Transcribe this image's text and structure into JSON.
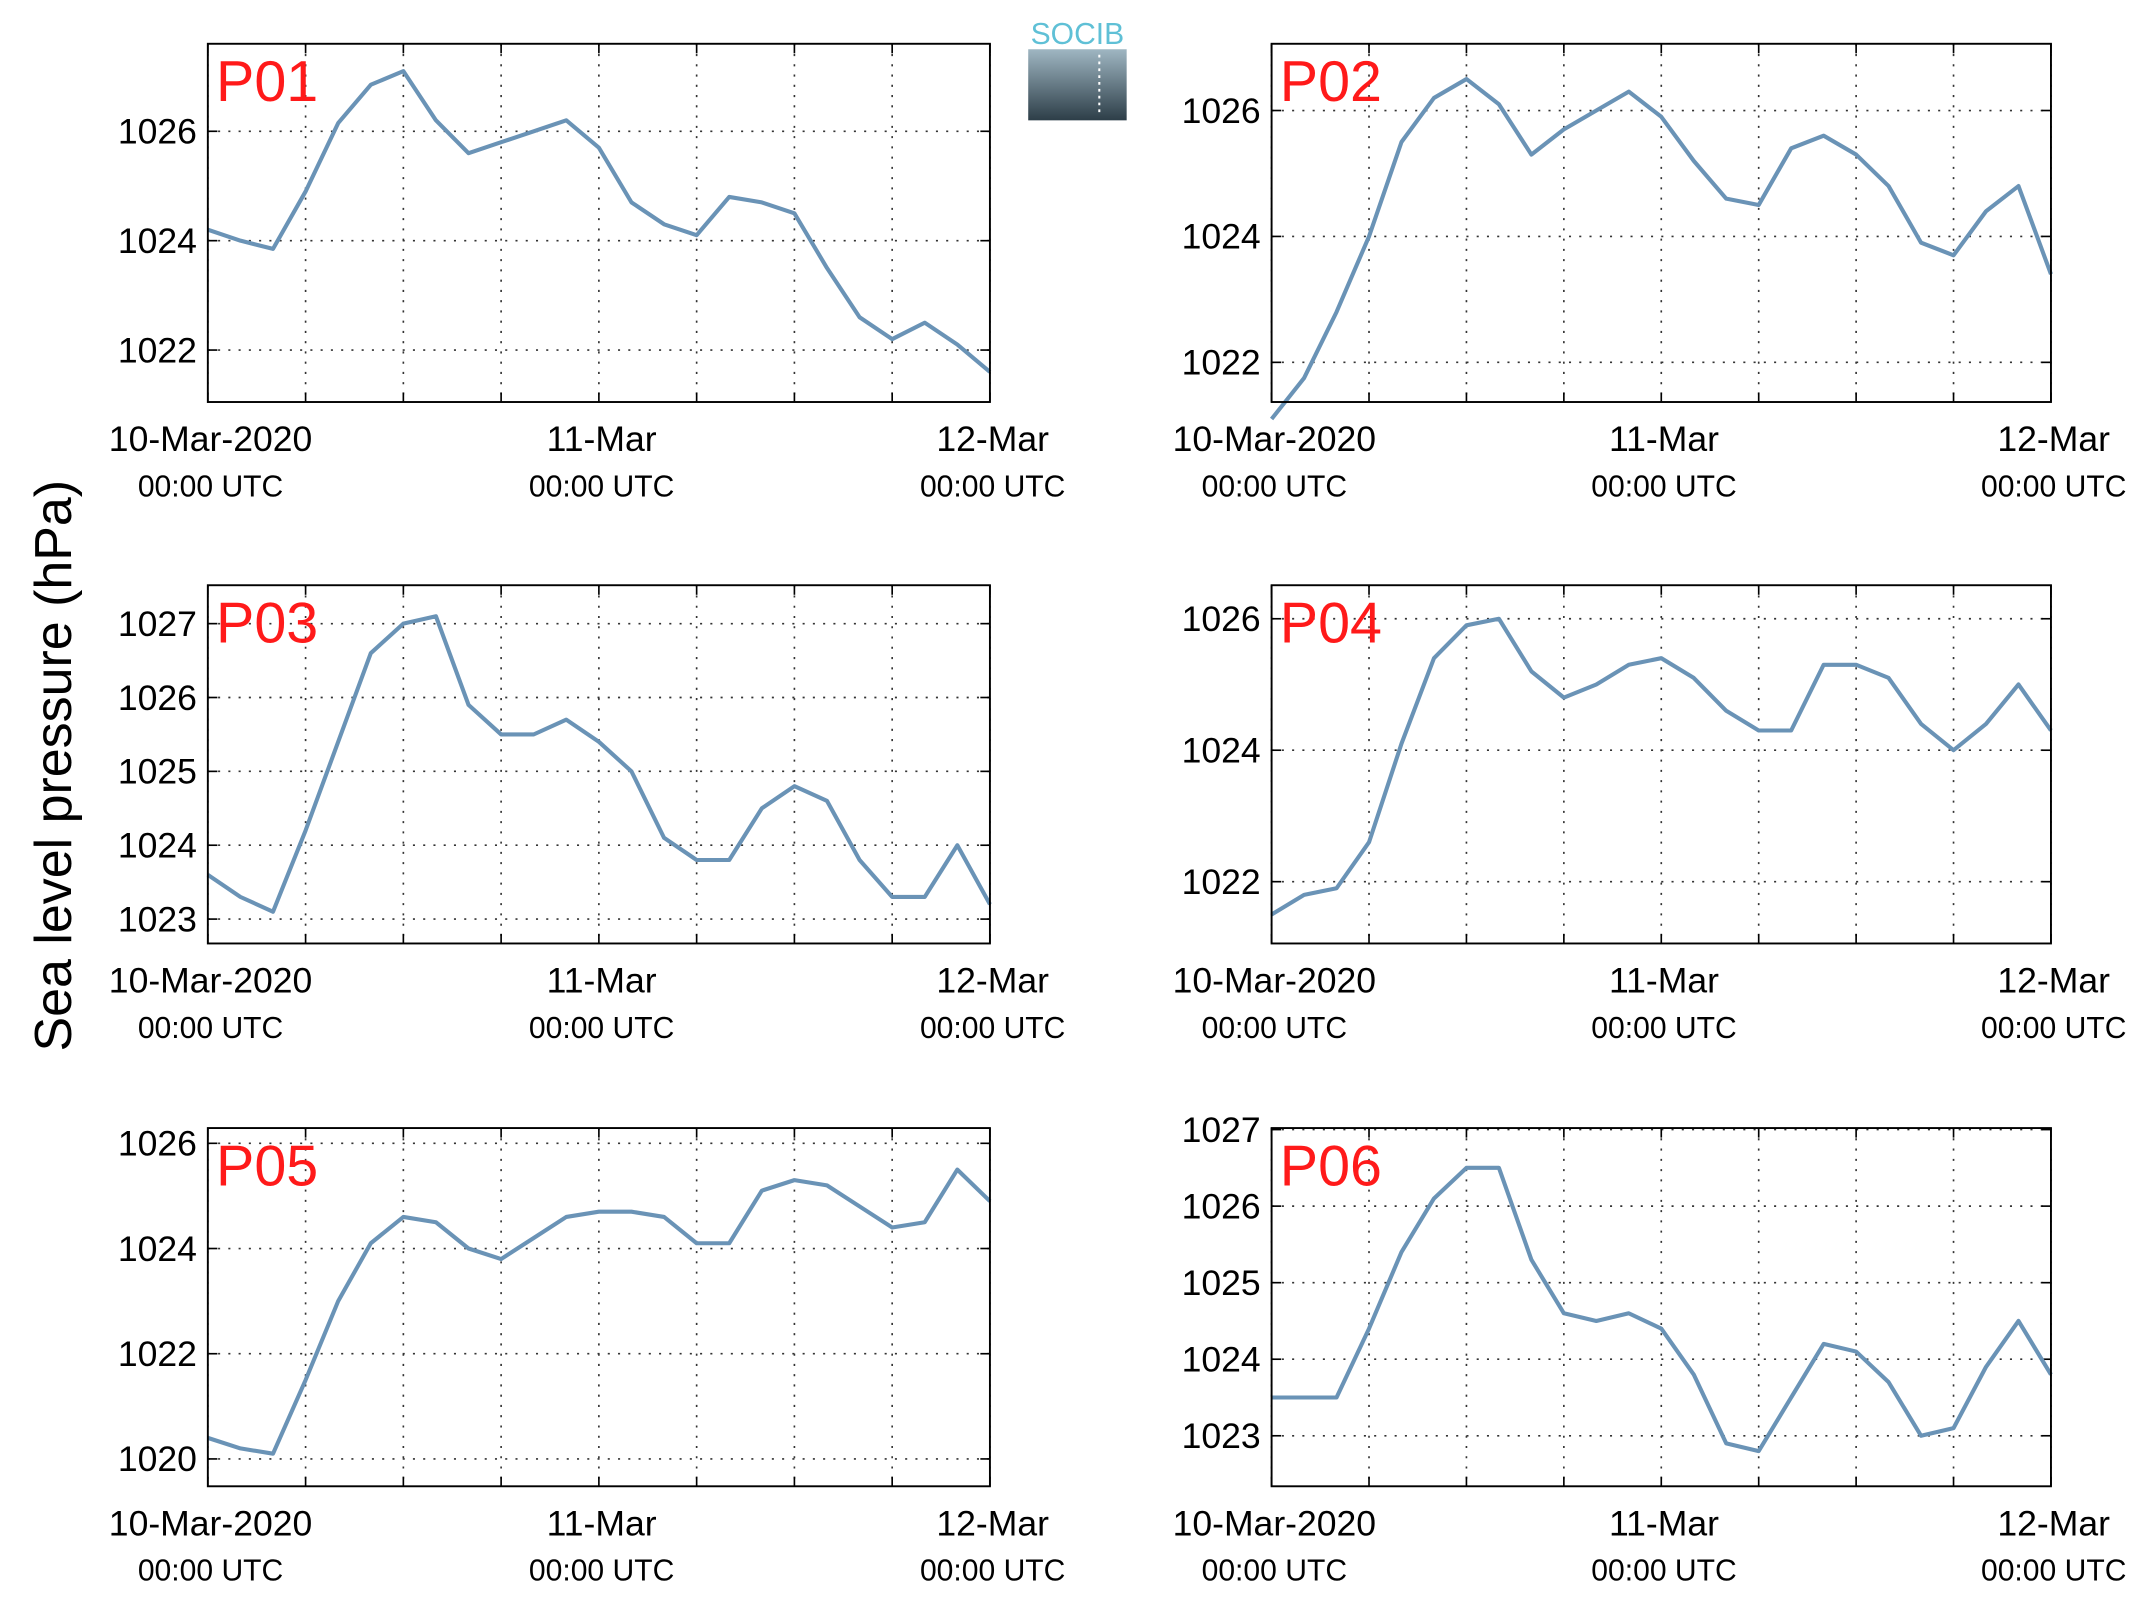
{
  "ylabel": "Sea level pressure (hPa)",
  "logo": "SOCIB",
  "chart_data": [
    {
      "type": "line",
      "title": "P01",
      "x": [
        0,
        2,
        4,
        6,
        8,
        10,
        12,
        14,
        16,
        18,
        20,
        22,
        24,
        26,
        28,
        30,
        32,
        34,
        36,
        38,
        40,
        42,
        44,
        46,
        48
      ],
      "series": [
        {
          "color": "#6a93b6",
          "values": [
            1024.2,
            1024.0,
            1023.85,
            1024.9,
            1026.15,
            1026.85,
            1027.1,
            1026.2,
            1025.6,
            1025.8,
            1026.0,
            1026.2,
            1025.7,
            1024.7,
            1024.3,
            1024.1,
            1024.8,
            1024.7,
            1024.5,
            1023.5,
            1022.6,
            1022.2,
            1022.5,
            1022.1,
            1021.6
          ]
        }
      ],
      "xlim": [
        0,
        48
      ],
      "xticks": [
        {
          "value": 0,
          "label": [
            "10-Mar-2020",
            "00:00 UTC"
          ]
        },
        {
          "value": 24,
          "label": [
            "11-Mar",
            "00:00 UTC"
          ]
        },
        {
          "value": 48,
          "label": [
            "12-Mar",
            "00:00 UTC"
          ]
        }
      ],
      "xminor": [
        6,
        12,
        18,
        30,
        36,
        42
      ],
      "ylim": [
        1021.05,
        1027.6
      ],
      "yticks": [
        1022,
        1024,
        1026
      ],
      "grid": true
    },
    {
      "type": "line",
      "title": "P02",
      "x": [
        0,
        2,
        4,
        6,
        8,
        10,
        12,
        14,
        16,
        18,
        20,
        22,
        24,
        26,
        28,
        30,
        32,
        34,
        36,
        38,
        40,
        42,
        44,
        46,
        48
      ],
      "series": [
        {
          "color": "#6a93b6",
          "values": [
            1021.1,
            1021.75,
            1022.8,
            1024.0,
            1025.5,
            1026.2,
            1026.5,
            1026.1,
            1025.3,
            1025.7,
            1026.0,
            1026.3,
            1025.9,
            1025.2,
            1024.6,
            1024.5,
            1025.4,
            1025.6,
            1025.3,
            1024.8,
            1023.9,
            1023.7,
            1024.4,
            1024.8,
            1023.4
          ]
        }
      ],
      "xlim": [
        0,
        48
      ],
      "xticks": [
        {
          "value": 0,
          "label": [
            "10-Mar-2020",
            "00:00 UTC"
          ]
        },
        {
          "value": 24,
          "label": [
            "11-Mar",
            "00:00 UTC"
          ]
        },
        {
          "value": 48,
          "label": [
            "12-Mar",
            "00:00 UTC"
          ]
        }
      ],
      "xminor": [
        6,
        12,
        18,
        30,
        36,
        42
      ],
      "ylim": [
        1021.37,
        1027.06
      ],
      "yticks": [
        1022,
        1024,
        1026
      ],
      "grid": true
    },
    {
      "type": "line",
      "title": "P03",
      "x": [
        0,
        2,
        4,
        6,
        8,
        10,
        12,
        14,
        16,
        18,
        20,
        22,
        24,
        26,
        28,
        30,
        32,
        34,
        36,
        38,
        40,
        42,
        44,
        46,
        48
      ],
      "series": [
        {
          "color": "#6a93b6",
          "values": [
            1023.6,
            1023.3,
            1023.1,
            1024.2,
            1025.4,
            1026.6,
            1027.0,
            1027.1,
            1025.9,
            1025.5,
            1025.5,
            1025.7,
            1025.4,
            1025.0,
            1024.1,
            1023.8,
            1023.8,
            1024.5,
            1024.8,
            1024.6,
            1023.8,
            1023.3,
            1023.3,
            1024.0,
            1023.2
          ]
        }
      ],
      "xlim": [
        0,
        48
      ],
      "xticks": [
        {
          "value": 0,
          "label": [
            "10-Mar-2020",
            "00:00 UTC"
          ]
        },
        {
          "value": 24,
          "label": [
            "11-Mar",
            "00:00 UTC"
          ]
        },
        {
          "value": 48,
          "label": [
            "12-Mar",
            "00:00 UTC"
          ]
        }
      ],
      "xminor": [
        6,
        12,
        18,
        30,
        36,
        42
      ],
      "ylim": [
        1022.67,
        1027.52
      ],
      "yticks": [
        1023,
        1024,
        1025,
        1026,
        1027
      ],
      "grid": true
    },
    {
      "type": "line",
      "title": "P04",
      "x": [
        0,
        2,
        4,
        6,
        8,
        10,
        12,
        14,
        16,
        18,
        20,
        22,
        24,
        26,
        28,
        30,
        32,
        34,
        36,
        38,
        40,
        42,
        44,
        46,
        48
      ],
      "series": [
        {
          "color": "#6a93b6",
          "values": [
            1021.5,
            1021.8,
            1021.9,
            1022.6,
            1024.1,
            1025.4,
            1025.9,
            1026.0,
            1025.2,
            1024.8,
            1025.0,
            1025.3,
            1025.4,
            1025.1,
            1024.6,
            1024.3,
            1024.3,
            1025.3,
            1025.3,
            1025.1,
            1024.4,
            1024.0,
            1024.4,
            1025.0,
            1024.3
          ]
        }
      ],
      "xlim": [
        0,
        48
      ],
      "xticks": [
        {
          "value": 0,
          "label": [
            "10-Mar-2020",
            "00:00 UTC"
          ]
        },
        {
          "value": 24,
          "label": [
            "11-Mar",
            "00:00 UTC"
          ]
        },
        {
          "value": 48,
          "label": [
            "12-Mar",
            "00:00 UTC"
          ]
        }
      ],
      "xminor": [
        6,
        12,
        18,
        30,
        36,
        42
      ],
      "ylim": [
        1021.06,
        1026.51
      ],
      "yticks": [
        1022,
        1024,
        1026
      ],
      "grid": true
    },
    {
      "type": "line",
      "title": "P05",
      "x": [
        0,
        2,
        4,
        6,
        8,
        10,
        12,
        14,
        16,
        18,
        20,
        22,
        24,
        26,
        28,
        30,
        32,
        34,
        36,
        38,
        40,
        42,
        44,
        46,
        48
      ],
      "series": [
        {
          "color": "#6a93b6",
          "values": [
            1020.4,
            1020.2,
            1020.1,
            1021.5,
            1023.0,
            1024.1,
            1024.6,
            1024.5,
            1024.0,
            1023.8,
            1024.2,
            1024.6,
            1024.7,
            1024.7,
            1024.6,
            1024.1,
            1024.1,
            1025.1,
            1025.3,
            1025.2,
            1024.8,
            1024.4,
            1024.5,
            1025.5,
            1024.9
          ]
        }
      ],
      "xlim": [
        0,
        48
      ],
      "xticks": [
        {
          "value": 0,
          "label": [
            "10-Mar-2020",
            "00:00 UTC"
          ]
        },
        {
          "value": 24,
          "label": [
            "11-Mar",
            "00:00 UTC"
          ]
        },
        {
          "value": 48,
          "label": [
            "12-Mar",
            "00:00 UTC"
          ]
        }
      ],
      "xminor": [
        6,
        12,
        18,
        30,
        36,
        42
      ],
      "ylim": [
        1019.48,
        1026.29
      ],
      "yticks": [
        1020,
        1022,
        1024,
        1026
      ],
      "grid": true
    },
    {
      "type": "line",
      "title": "P06",
      "x": [
        0,
        2,
        4,
        6,
        8,
        10,
        12,
        14,
        16,
        18,
        20,
        22,
        24,
        26,
        28,
        30,
        32,
        34,
        36,
        38,
        40,
        42,
        44,
        46,
        48
      ],
      "series": [
        {
          "color": "#6a93b6",
          "values": [
            1023.5,
            1023.5,
            1023.5,
            1024.4,
            1025.4,
            1026.1,
            1026.5,
            1026.5,
            1025.3,
            1024.6,
            1024.5,
            1024.6,
            1024.4,
            1023.8,
            1022.9,
            1022.8,
            1023.5,
            1024.2,
            1024.1,
            1023.7,
            1023.0,
            1023.1,
            1023.9,
            1024.5,
            1023.8
          ]
        }
      ],
      "xlim": [
        0,
        48
      ],
      "xticks": [
        {
          "value": 0,
          "label": [
            "10-Mar-2020",
            "00:00 UTC"
          ]
        },
        {
          "value": 24,
          "label": [
            "11-Mar",
            "00:00 UTC"
          ]
        },
        {
          "value": 48,
          "label": [
            "12-Mar",
            "00:00 UTC"
          ]
        }
      ],
      "xminor": [
        6,
        12,
        18,
        30,
        36,
        42
      ],
      "ylim": [
        1022.34,
        1027.02
      ],
      "yticks": [
        1023,
        1024,
        1025,
        1026,
        1027
      ],
      "grid": true
    }
  ]
}
